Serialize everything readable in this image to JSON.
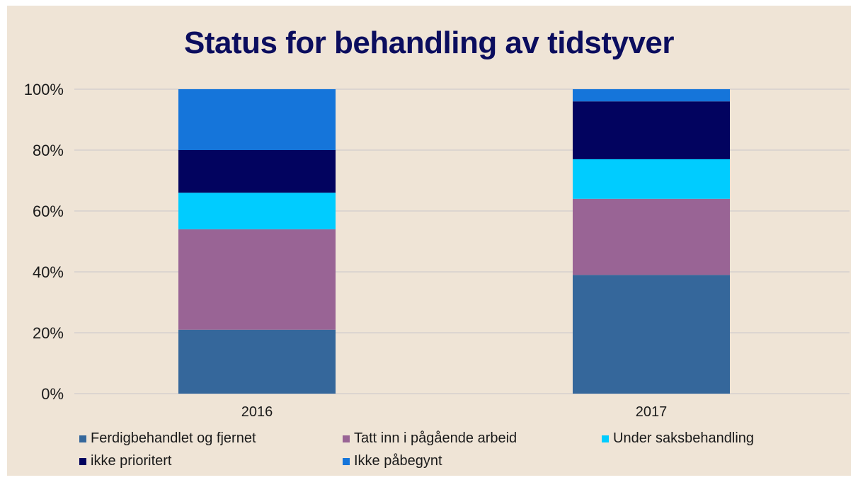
{
  "chart_data": {
    "type": "bar",
    "stacked": true,
    "percent_stacked": true,
    "title": "Status for behandling av tidstyver",
    "xlabel": "",
    "ylabel": "",
    "categories": [
      "2016",
      "2017"
    ],
    "ylim": [
      0,
      100
    ],
    "yticks": [
      "0%",
      "20%",
      "40%",
      "60%",
      "80%",
      "100%"
    ],
    "grid": true,
    "legend_position": "bottom",
    "series": [
      {
        "name": "Ferdigbehandlet og fjernet",
        "color": "#35679b",
        "values": [
          21,
          39
        ]
      },
      {
        "name": "Tatt inn i pågående arbeid",
        "color": "#996495",
        "values": [
          33,
          25
        ]
      },
      {
        "name": "Under saksbehandling",
        "color": "#00ccff",
        "values": [
          12,
          13
        ]
      },
      {
        "name": "ikke prioritert",
        "color": "#02035f",
        "values": [
          14,
          19
        ]
      },
      {
        "name": "Ikke påbegynt",
        "color": "#1575da",
        "values": [
          20,
          4
        ]
      }
    ]
  }
}
